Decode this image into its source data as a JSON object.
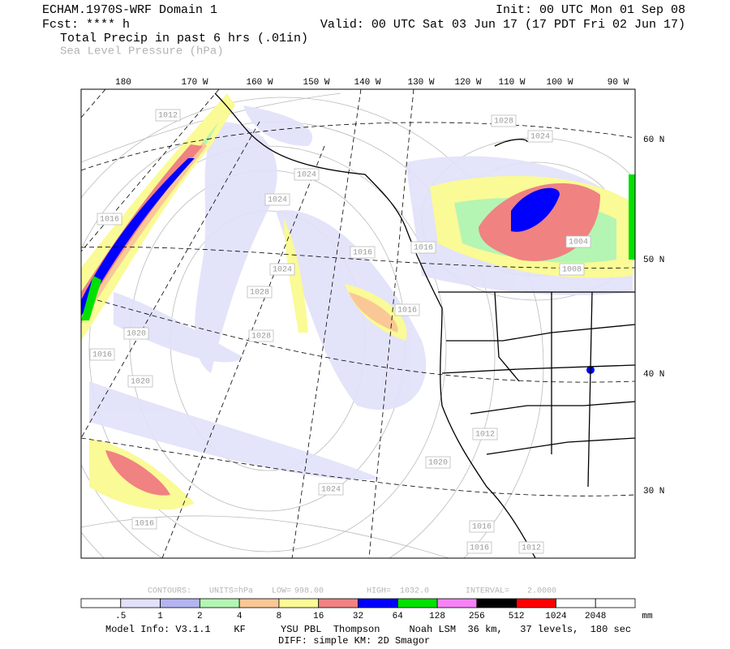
{
  "header": {
    "model": "ECHAM.1970S-WRF Domain 1",
    "forecast": "Fcst: **** h",
    "field1": "Total Precip in past 6 hrs (.01in)",
    "field2": "Sea Level Pressure (hPa)",
    "init": "Init: 00 UTC Mon 01 Sep 08",
    "valid": "Valid: 00 UTC Sat 03 Jun 17 (17 PDT Fri 02 Jun 17)"
  },
  "map": {
    "longitude_labels": [
      "180",
      "170 W",
      "160 W",
      "150 W",
      "140 W",
      "130 W",
      "120 W",
      "110 W",
      "100 W",
      "90 W"
    ],
    "latitude_labels": [
      "60 N",
      "50 N",
      "40 N",
      "30 N"
    ],
    "contour_labels": [
      "1012",
      "1028",
      "1024",
      "1024",
      "1024",
      "1016",
      "1016",
      "1016",
      "1024",
      "1004",
      "1008",
      "1028",
      "1016",
      "1020",
      "1028",
      "1016",
      "1020",
      "1012",
      "1020",
      "1024",
      "1016",
      "1016",
      "1016",
      "1012"
    ]
  },
  "contour_info": [
    "CONTOURS:",
    "UNITS=hPa",
    "LOW=",
    "998.00",
    "HIGH=",
    "1032.0",
    "INTERVAL=",
    "2.0000"
  ],
  "colorbar": {
    "colors": [
      "#ffffff",
      "#e1e1fa",
      "#b4b4f0",
      "#b4f5b4",
      "#fac896",
      "#fafa96",
      "#f08282",
      "#0000ff",
      "#00e100",
      "#f582f5",
      "#000000",
      "#ff0000",
      "#ffffff",
      "#ffffff"
    ],
    "labels": [
      ".5",
      "1",
      "2",
      "4",
      "8",
      "16",
      "32",
      "64",
      "128",
      "256",
      "512",
      "1024",
      "2048"
    ],
    "unit": "mm"
  },
  "footer": {
    "line1": "Model Info: V3.1.1    KF      YSU PBL  Thompson     Noah LSM  36 km,   37 levels,  180 sec",
    "line2": "DIFF: simple KM: 2D Smagor"
  }
}
